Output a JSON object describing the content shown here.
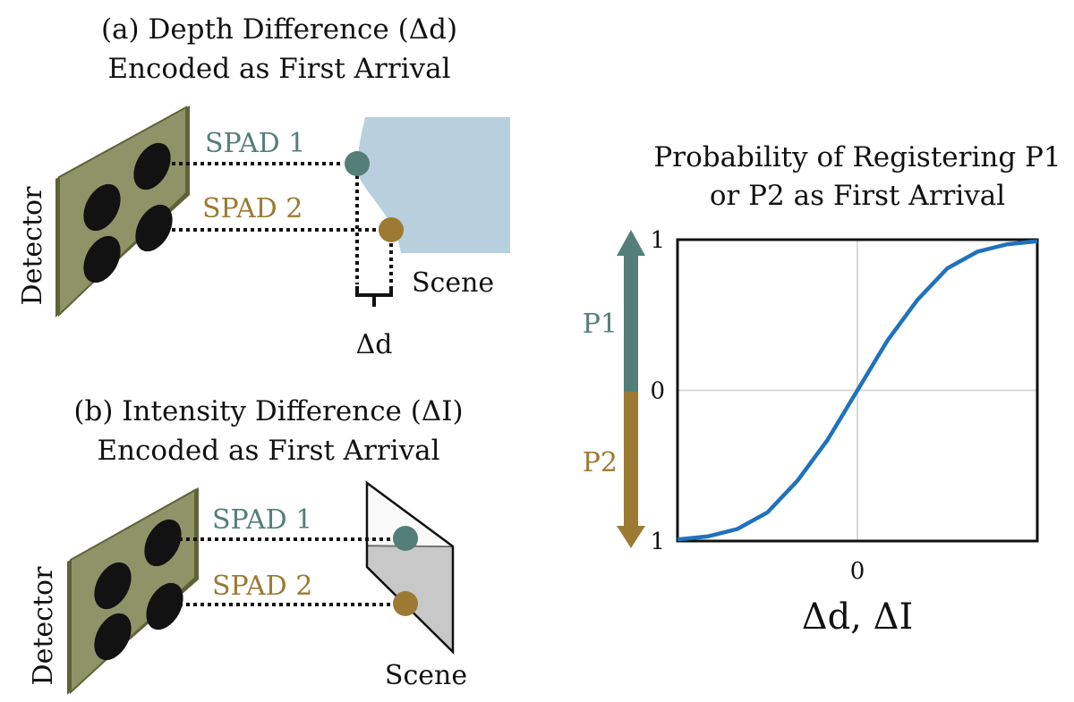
{
  "colors": {
    "spad1": "#547e78",
    "spad2": "#9c7a33",
    "detector_face": "#8f9468",
    "detector_edge": "#5e6338",
    "scene_depth": "#b8cfdd",
    "curve": "#1f72bc"
  },
  "panel_a": {
    "title_line1": "(a) Depth Difference (Δd)",
    "title_line2": "Encoded as First Arrival",
    "detector_label": "Detector",
    "spad1_label": "SPAD 1",
    "spad2_label": "SPAD 2",
    "scene_label": "Scene",
    "delta_label": "Δd"
  },
  "panel_b": {
    "title_line1": "(b) Intensity Difference (ΔI)",
    "title_line2": "Encoded as First Arrival",
    "detector_label": "Detector",
    "spad1_label": "SPAD 1",
    "spad2_label": "SPAD 2",
    "scene_label": "Scene"
  },
  "plot": {
    "title_line1": "Probability of Registering P1",
    "title_line2": "or P2 as First Arrival",
    "arrow_up_label": "P1",
    "arrow_down_label": "P2"
  },
  "chart_data": {
    "type": "line",
    "title": "Probability of Registering P1 or P2 as First Arrival",
    "xlabel": "Δd, ΔI",
    "ylabel": "",
    "x_tick_labels": [
      "0"
    ],
    "y_tick_labels": [
      "1",
      "0",
      "1"
    ],
    "xlim": [
      -3,
      3
    ],
    "ylim": [
      -1,
      1
    ],
    "grid": true,
    "series": [
      {
        "x": [
          -3,
          -2.5,
          -2,
          -1.5,
          -1,
          -0.5,
          0,
          0.5,
          1,
          1.5,
          2,
          2.5,
          3
        ],
        "y": [
          -0.99,
          -0.97,
          -0.92,
          -0.81,
          -0.6,
          -0.33,
          0,
          0.33,
          0.6,
          0.81,
          0.92,
          0.97,
          0.99
        ]
      }
    ]
  }
}
